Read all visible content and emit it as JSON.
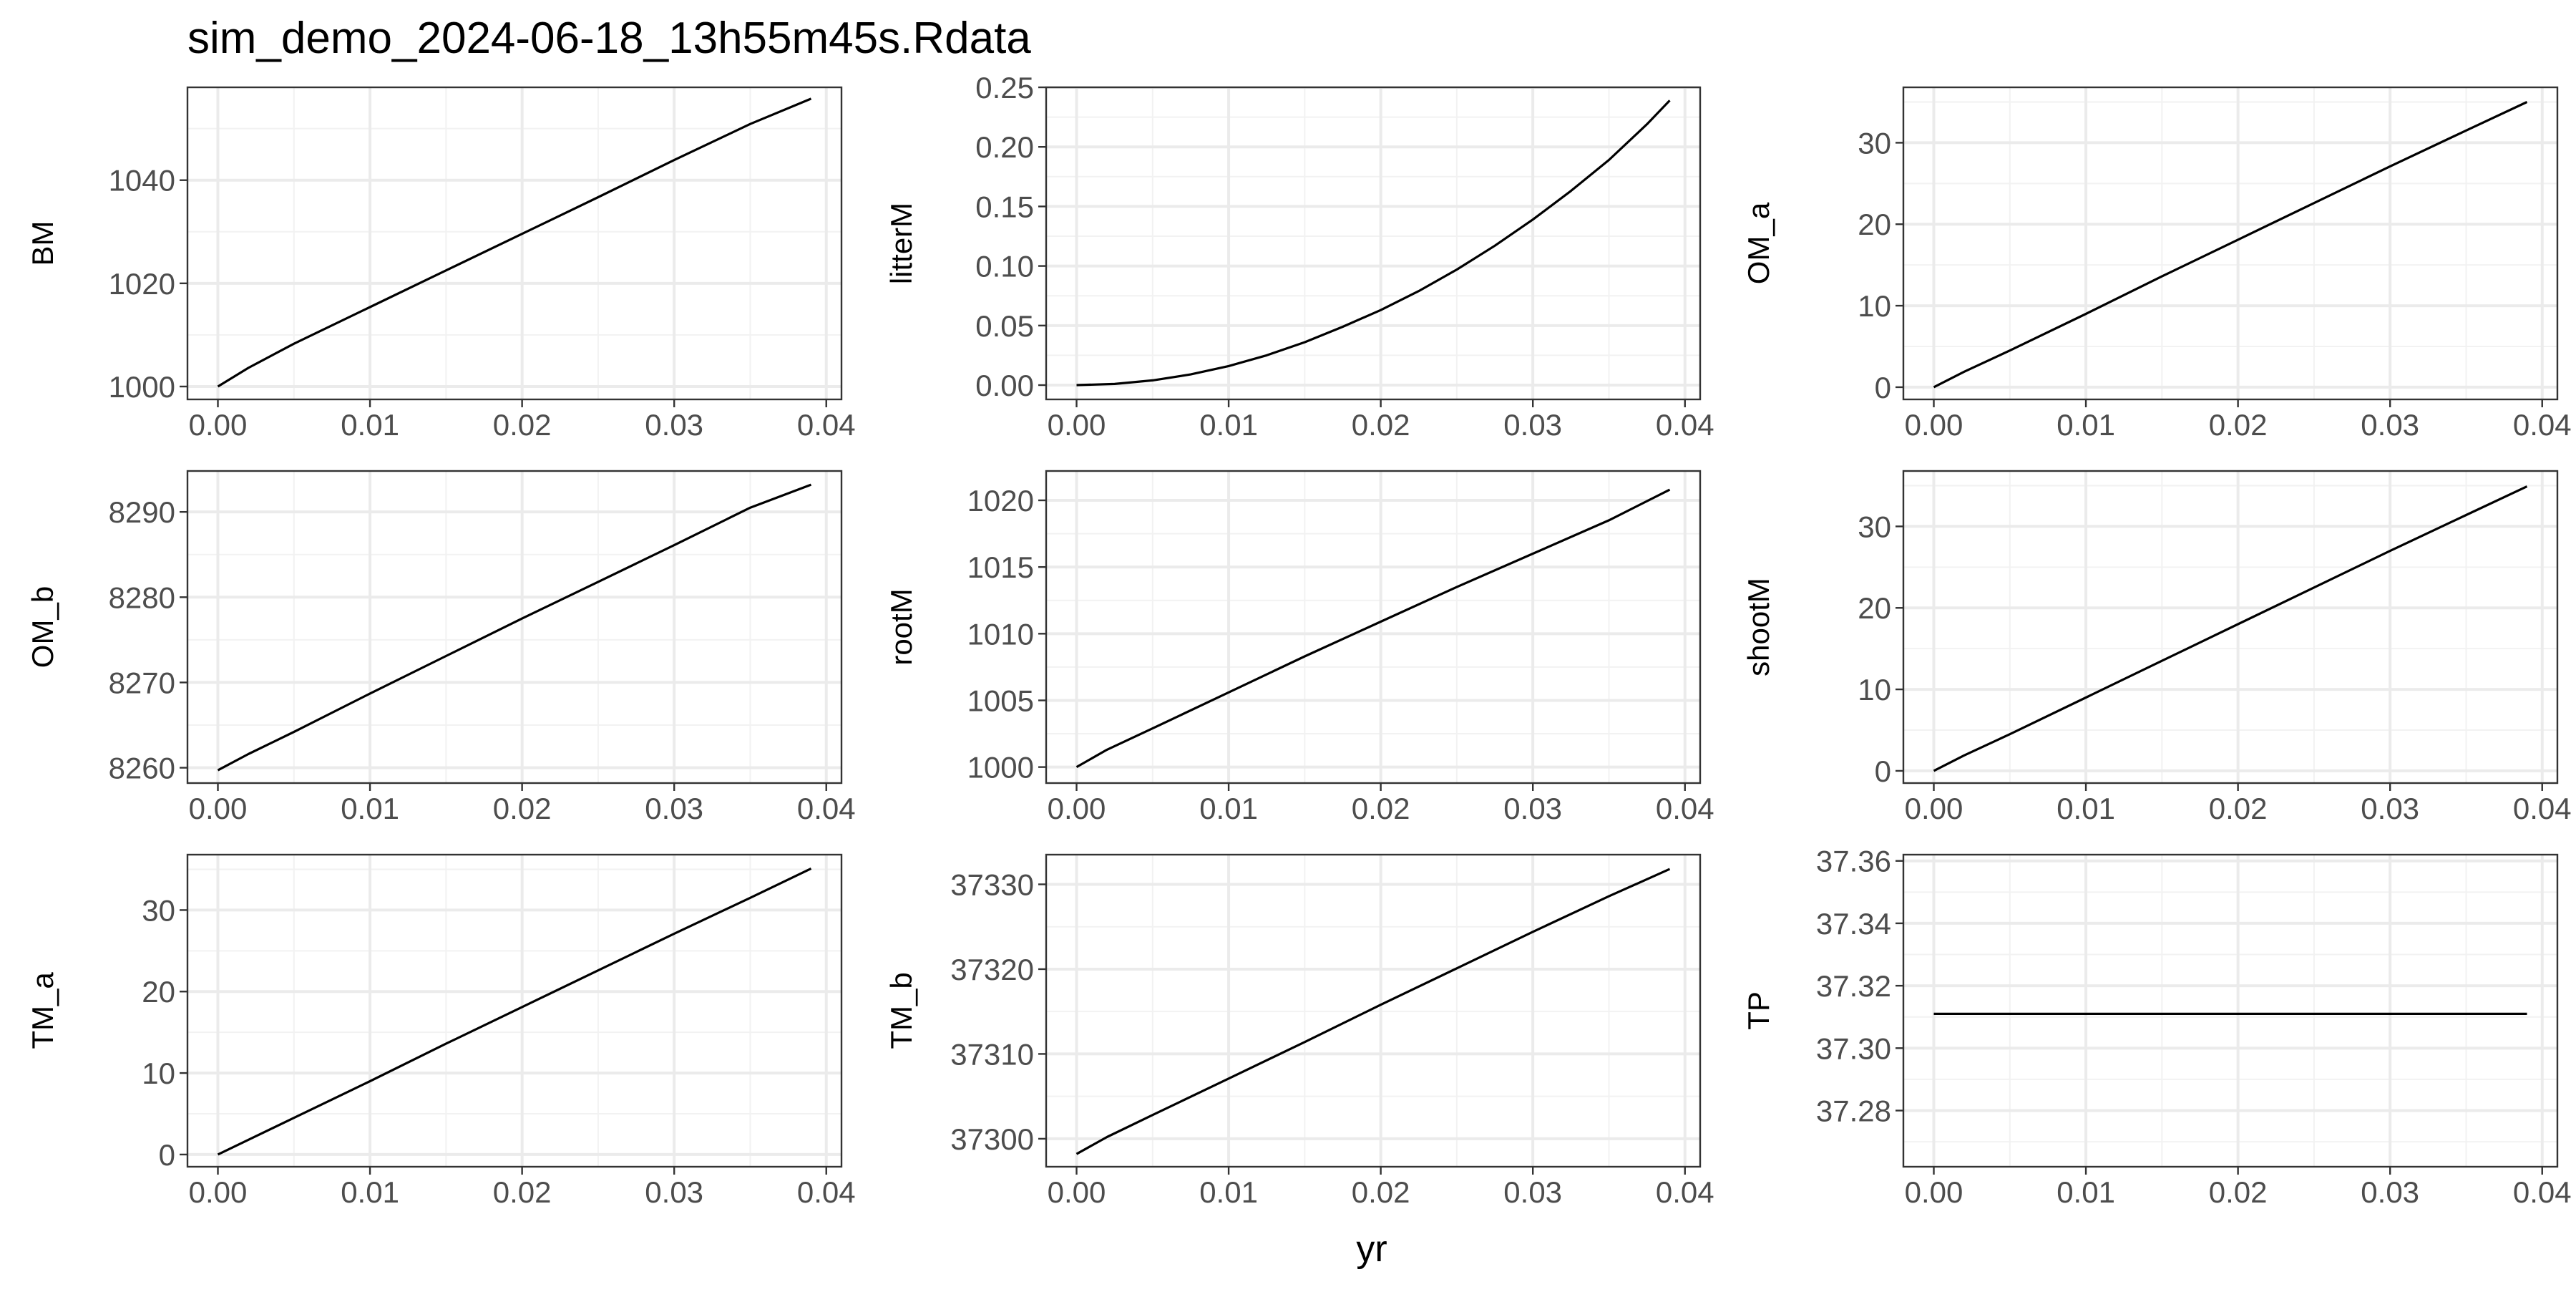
{
  "title": "sim_demo_2024-06-18_13h55m45s.Rdata",
  "xlabel": "yr",
  "chart_data": [
    {
      "type": "line",
      "ylabel": "BM",
      "xlim": [
        -0.002,
        0.041
      ],
      "x": [
        0,
        0.039
      ],
      "ylim": [
        997.5,
        1058
      ],
      "yticks": [
        "1000",
        "1020",
        "1040"
      ],
      "ytick_values": [
        1000,
        1020,
        1040
      ],
      "xticks": [
        "0.00",
        "0.01",
        "0.02",
        "0.03",
        "0.04"
      ],
      "xtick_values": [
        0,
        0.01,
        0.02,
        0.03,
        0.04
      ],
      "grid": true,
      "series": [
        {
          "x": [
            0,
            0.002,
            0.005,
            0.01,
            0.015,
            0.02,
            0.025,
            0.03,
            0.035,
            0.039
          ],
          "y": [
            1000,
            1003.6,
            1008.3,
            1015.4,
            1022.5,
            1029.6,
            1036.7,
            1043.9,
            1050.9,
            1055.8
          ]
        }
      ]
    },
    {
      "type": "line",
      "ylabel": "litterM",
      "xlim": [
        -0.002,
        0.041
      ],
      "ylim": [
        -0.012,
        0.25
      ],
      "yticks": [
        "0.00",
        "0.05",
        "0.10",
        "0.15",
        "0.20",
        "0.25"
      ],
      "ytick_values": [
        0,
        0.05,
        0.1,
        0.15,
        0.2,
        0.25
      ],
      "xticks": [
        "0.00",
        "0.01",
        "0.02",
        "0.03",
        "0.04"
      ],
      "xtick_values": [
        0,
        0.01,
        0.02,
        0.03,
        0.04
      ],
      "grid": true,
      "series": [
        {
          "x": [
            0,
            0.0025,
            0.005,
            0.0075,
            0.01,
            0.0125,
            0.015,
            0.0175,
            0.02,
            0.0225,
            0.025,
            0.0275,
            0.03,
            0.0325,
            0.035,
            0.0375,
            0.039
          ],
          "y": [
            0,
            0.001,
            0.004,
            0.009,
            0.016,
            0.025,
            0.036,
            0.049,
            0.063,
            0.079,
            0.097,
            0.117,
            0.139,
            0.163,
            0.189,
            0.219,
            0.239
          ]
        }
      ]
    },
    {
      "type": "line",
      "ylabel": "OM_a",
      "xlim": [
        -0.002,
        0.041
      ],
      "ylim": [
        -1.5,
        36.8
      ],
      "yticks": [
        "0",
        "10",
        "20",
        "30"
      ],
      "ytick_values": [
        0,
        10,
        20,
        30
      ],
      "xticks": [
        "0.00",
        "0.01",
        "0.02",
        "0.03",
        "0.04"
      ],
      "xtick_values": [
        0,
        0.01,
        0.02,
        0.03,
        0.04
      ],
      "grid": true,
      "series": [
        {
          "x": [
            0,
            0.002,
            0.005,
            0.01,
            0.015,
            0.02,
            0.025,
            0.03,
            0.035,
            0.039
          ],
          "y": [
            0,
            1.9,
            4.5,
            9.0,
            13.6,
            18.1,
            22.6,
            27.1,
            31.5,
            35.0
          ]
        }
      ]
    },
    {
      "type": "line",
      "ylabel": "OM_b",
      "xlim": [
        -0.002,
        0.041
      ],
      "ylim": [
        8258.2,
        8294.8
      ],
      "yticks": [
        "8260",
        "8270",
        "8280",
        "8290"
      ],
      "ytick_values": [
        8260,
        8270,
        8280,
        8290
      ],
      "xticks": [
        "0.00",
        "0.01",
        "0.02",
        "0.03",
        "0.04"
      ],
      "xtick_values": [
        0,
        0.01,
        0.02,
        0.03,
        0.04
      ],
      "grid": true,
      "series": [
        {
          "x": [
            0,
            0.002,
            0.005,
            0.01,
            0.015,
            0.02,
            0.025,
            0.03,
            0.035,
            0.039
          ],
          "y": [
            8259.7,
            8261.6,
            8264.2,
            8268.7,
            8273.1,
            8277.5,
            8281.8,
            8286.1,
            8290.5,
            8293.2
          ]
        }
      ]
    },
    {
      "type": "line",
      "ylabel": "rootM",
      "xlim": [
        -0.002,
        0.041
      ],
      "ylim": [
        998.8,
        1022.2
      ],
      "yticks": [
        "1000",
        "1005",
        "1010",
        "1015",
        "1020"
      ],
      "ytick_values": [
        1000,
        1005,
        1010,
        1015,
        1020
      ],
      "xticks": [
        "0.00",
        "0.01",
        "0.02",
        "0.03",
        "0.04"
      ],
      "xtick_values": [
        0,
        0.01,
        0.02,
        0.03,
        0.04
      ],
      "grid": true,
      "series": [
        {
          "x": [
            0,
            0.002,
            0.005,
            0.01,
            0.015,
            0.02,
            0.025,
            0.03,
            0.035,
            0.039
          ],
          "y": [
            1000,
            1001.3,
            1002.9,
            1005.6,
            1008.3,
            1010.9,
            1013.5,
            1016.0,
            1018.5,
            1020.8
          ]
        }
      ]
    },
    {
      "type": "line",
      "ylabel": "shootM",
      "xlim": [
        -0.002,
        0.041
      ],
      "ylim": [
        -1.5,
        36.8
      ],
      "yticks": [
        "0",
        "10",
        "20",
        "30"
      ],
      "ytick_values": [
        0,
        10,
        20,
        30
      ],
      "xticks": [
        "0.00",
        "0.01",
        "0.02",
        "0.03",
        "0.04"
      ],
      "xtick_values": [
        0,
        0.01,
        0.02,
        0.03,
        0.04
      ],
      "grid": true,
      "series": [
        {
          "x": [
            0,
            0.002,
            0.005,
            0.01,
            0.015,
            0.02,
            0.025,
            0.03,
            0.035,
            0.039
          ],
          "y": [
            0,
            1.9,
            4.5,
            9.0,
            13.5,
            18.0,
            22.5,
            27.0,
            31.4,
            34.9
          ]
        }
      ]
    },
    {
      "type": "line",
      "ylabel": "TM_a",
      "xlim": [
        -0.002,
        0.041
      ],
      "ylim": [
        -1.5,
        36.8
      ],
      "yticks": [
        "0",
        "10",
        "20",
        "30"
      ],
      "ytick_values": [
        0,
        10,
        20,
        30
      ],
      "xticks": [
        "0.00",
        "0.01",
        "0.02",
        "0.03",
        "0.04"
      ],
      "xtick_values": [
        0,
        0.01,
        0.02,
        0.03,
        0.04
      ],
      "grid": true,
      "series": [
        {
          "x": [
            0,
            0.002,
            0.005,
            0.01,
            0.015,
            0.02,
            0.025,
            0.03,
            0.035,
            0.039
          ],
          "y": [
            0,
            1.8,
            4.5,
            9.0,
            13.6,
            18.1,
            22.6,
            27.1,
            31.5,
            35.1
          ]
        }
      ]
    },
    {
      "type": "line",
      "ylabel": "TM_b",
      "xlim": [
        -0.002,
        0.041
      ],
      "ylim": [
        37296.7,
        37333.5
      ],
      "yticks": [
        "37300",
        "37310",
        "37320",
        "37330"
      ],
      "ytick_values": [
        37300,
        37310,
        37320,
        37330
      ],
      "xticks": [
        "0.00",
        "0.01",
        "0.02",
        "0.03",
        "0.04"
      ],
      "xtick_values": [
        0,
        0.01,
        0.02,
        0.03,
        0.04
      ],
      "grid": true,
      "series": [
        {
          "x": [
            0,
            0.002,
            0.005,
            0.01,
            0.015,
            0.02,
            0.025,
            0.03,
            0.035,
            0.039
          ],
          "y": [
            37298.2,
            37300.2,
            37302.8,
            37307.1,
            37311.4,
            37315.8,
            37320.1,
            37324.4,
            37328.6,
            37331.8
          ]
        }
      ]
    },
    {
      "type": "line",
      "ylabel": "TP",
      "xlim": [
        -0.002,
        0.041
      ],
      "ylim": [
        37.262,
        37.362
      ],
      "yticks": [
        "37.28",
        "37.30",
        "37.32",
        "37.34",
        "37.36"
      ],
      "ytick_values": [
        37.28,
        37.3,
        37.32,
        37.34,
        37.36
      ],
      "xticks": [
        "0.00",
        "0.01",
        "0.02",
        "0.03",
        "0.04"
      ],
      "xtick_values": [
        0,
        0.01,
        0.02,
        0.03,
        0.04
      ],
      "grid": true,
      "series": [
        {
          "x": [
            0,
            0.039
          ],
          "y": [
            37.311,
            37.311
          ]
        }
      ]
    }
  ]
}
